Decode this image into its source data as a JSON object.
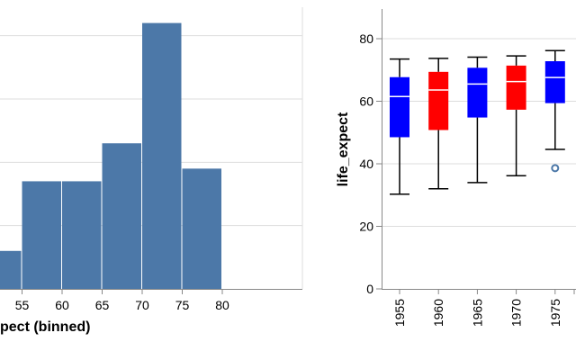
{
  "colors": {
    "hist_bar": "#4c78a8",
    "box_blue": "#0000ff",
    "box_red": "#ff0000",
    "median_line": "#ffffff",
    "whisker": "#000000",
    "outlier": "#4c78a8",
    "grid": "#dddddd",
    "axis": "#888888"
  },
  "chart_data": [
    {
      "type": "bar",
      "subtype": "histogram",
      "xlabel_visible": "pect (binned)",
      "ylabel": "",
      "bin_width": 5,
      "x_ticks": [
        55,
        60,
        65,
        70,
        75,
        80
      ],
      "bins": [
        {
          "start": 50,
          "end": 55,
          "count": 6
        },
        {
          "start": 55,
          "end": 60,
          "count": 17
        },
        {
          "start": 60,
          "end": 65,
          "count": 17
        },
        {
          "start": 65,
          "end": 70,
          "count": 23
        },
        {
          "start": 70,
          "end": 75,
          "count": 42
        },
        {
          "start": 75,
          "end": 80,
          "count": 19
        }
      ],
      "grid": true
    },
    {
      "type": "boxplot",
      "ylabel": "life_expect",
      "ylim": [
        0,
        90
      ],
      "y_ticks": [
        0,
        20,
        40,
        60,
        80
      ],
      "categories": [
        "1955",
        "1960",
        "1965",
        "1970",
        "1975"
      ],
      "boxes": [
        {
          "category": "1955",
          "min": 30.3,
          "q1": 48.5,
          "median": 61.5,
          "q3": 67.7,
          "max": 73.5,
          "color": "blue",
          "outliers": []
        },
        {
          "category": "1960",
          "min": 32.0,
          "q1": 50.8,
          "median": 63.6,
          "q3": 69.4,
          "max": 73.7,
          "color": "red",
          "outliers": []
        },
        {
          "category": "1965",
          "min": 34.0,
          "q1": 54.8,
          "median": 65.5,
          "q3": 70.7,
          "max": 74.1,
          "color": "blue",
          "outliers": []
        },
        {
          "category": "1970",
          "min": 36.2,
          "q1": 57.3,
          "median": 66.3,
          "q3": 71.4,
          "max": 74.5,
          "color": "red",
          "outliers": []
        },
        {
          "category": "1975",
          "min": 44.6,
          "q1": 59.4,
          "median": 67.6,
          "q3": 72.8,
          "max": 76.2,
          "color": "blue",
          "outliers": [
            38.6
          ]
        }
      ],
      "grid": true
    }
  ]
}
